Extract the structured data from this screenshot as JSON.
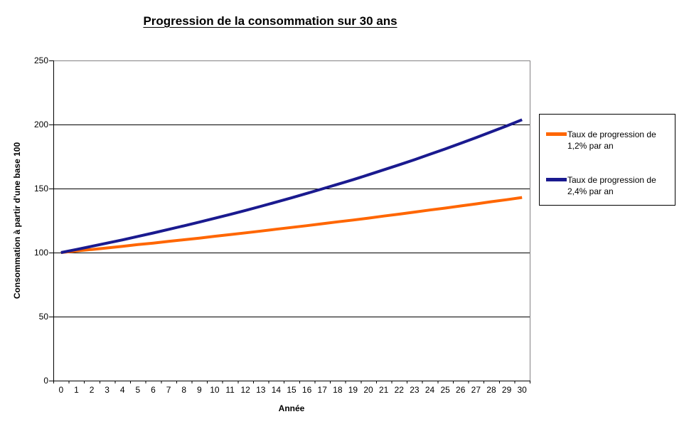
{
  "chart_data": {
    "type": "line",
    "title": "Progression de la consommation sur 30 ans",
    "xlabel": "Année",
    "ylabel": "Consommation à partir d'une base 100",
    "x": [
      0,
      1,
      2,
      3,
      4,
      5,
      6,
      7,
      8,
      9,
      10,
      11,
      12,
      13,
      14,
      15,
      16,
      17,
      18,
      19,
      20,
      21,
      22,
      23,
      24,
      25,
      26,
      27,
      28,
      29,
      30
    ],
    "ylim": [
      0,
      250
    ],
    "yticks": [
      0,
      50,
      100,
      150,
      200,
      250
    ],
    "grid": "horizontal-black",
    "plot_border_color": "#848284",
    "axis_color": "#000000",
    "legend_position": "right",
    "series": [
      {
        "name": "Taux de progression de 1,2% par an",
        "color": "#FF6600",
        "values": [
          100.0,
          101.2,
          102.4,
          103.6,
          104.9,
          106.2,
          107.4,
          108.7,
          110.0,
          111.3,
          112.7,
          114.0,
          115.4,
          116.8,
          118.2,
          119.6,
          121.0,
          122.5,
          124.0,
          125.4,
          126.9,
          128.5,
          130.0,
          131.6,
          133.2,
          134.7,
          136.4,
          138.0,
          139.7,
          141.3,
          143.0
        ]
      },
      {
        "name": "Taux de progression de 2,4% par an",
        "color": "#1A1A8F",
        "values": [
          100.0,
          102.4,
          104.9,
          107.4,
          109.9,
          112.6,
          115.3,
          118.1,
          120.9,
          123.8,
          126.8,
          129.8,
          132.9,
          136.1,
          139.4,
          142.7,
          146.2,
          149.7,
          153.3,
          156.9,
          160.7,
          164.6,
          168.5,
          172.5,
          176.7,
          180.9,
          185.3,
          189.7,
          194.3,
          198.9,
          203.7
        ]
      }
    ]
  }
}
